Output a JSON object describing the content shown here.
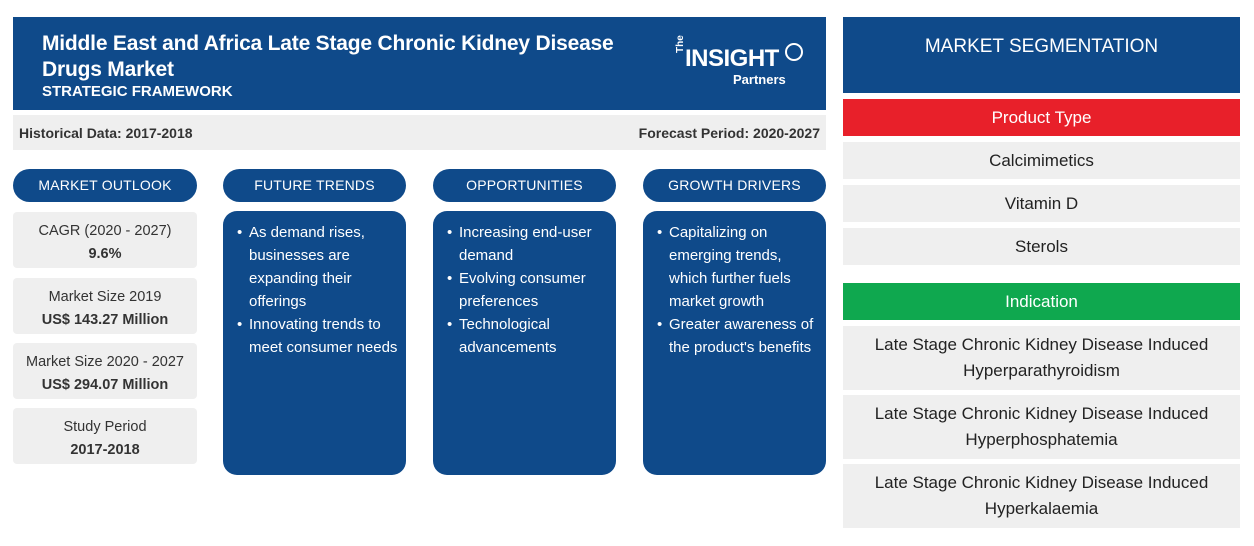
{
  "header": {
    "title": "Middle East and Africa Late Stage Chronic Kidney Disease Drugs Market",
    "subtitle": "STRATEGIC FRAMEWORK",
    "logo_the": "The",
    "logo_insight": "INSIGHT",
    "logo_partners": "Partners"
  },
  "periods": {
    "historical": "Historical Data: 2017-2018",
    "forecast": "Forecast Period: 2020-2027"
  },
  "pills": {
    "market_outlook": "MARKET OUTLOOK",
    "future_trends": "FUTURE TRENDS",
    "opportunities": "OPPORTUNITIES",
    "growth_drivers": "GROWTH DRIVERS"
  },
  "outlook": [
    {
      "label": "CAGR (2020 - 2027)",
      "value": "9.6%"
    },
    {
      "label": "Market Size 2019",
      "value": "US$ 143.27 Million"
    },
    {
      "label": "Market Size 2020 - 2027",
      "value": "US$ 294.07 Million"
    },
    {
      "label": "Study Period",
      "value": "2017-2018"
    }
  ],
  "future_trends": [
    "As demand rises, businesses are expanding their offerings",
    "Innovating trends to meet consumer needs"
  ],
  "opportunities": [
    "Increasing end-user demand",
    "Evolving consumer preferences",
    "Technological advancements"
  ],
  "growth_drivers": [
    "Capitalizing on emerging trends, which further fuels market growth",
    "Greater awareness of the product's benefits"
  ],
  "segmentation": {
    "title": "MARKET SEGMENTATION",
    "product_type": {
      "label": "Product Type",
      "color": "#e8202a",
      "items": [
        "Calcimimetics",
        "Vitamin D",
        "Sterols"
      ]
    },
    "indication": {
      "label": "Indication",
      "color": "#0fa84f",
      "items": [
        "Late Stage Chronic Kidney Disease Induced Hyperparathyroidism",
        "Late Stage Chronic Kidney Disease Induced Hyperphosphatemia",
        "Late Stage Chronic Kidney Disease Induced Hyperkalaemia"
      ]
    }
  },
  "colors": {
    "brand_blue": "#0f4a8a",
    "panel_grey": "#efefef"
  }
}
